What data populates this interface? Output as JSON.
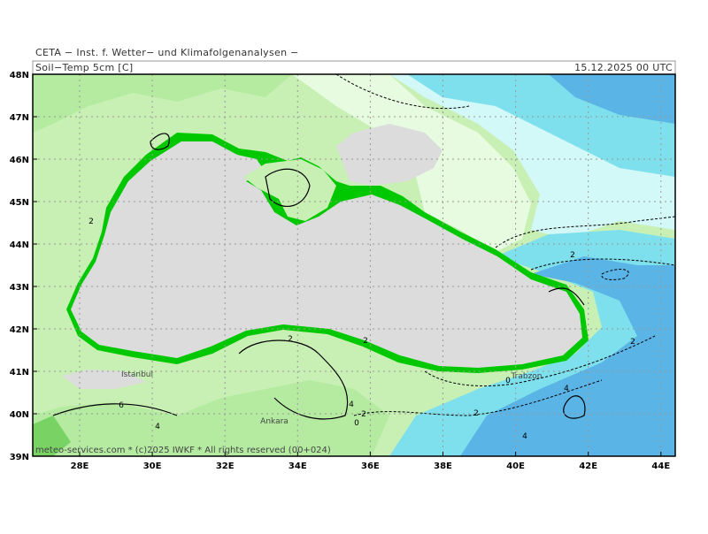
{
  "header": {
    "source": "CETA − Inst. f. Wetter− und Klimafolgenanalysen −",
    "variable": "Soil−Temp 5cm [C]",
    "valid_time": "15.12.2025 00 UTC"
  },
  "map": {
    "lat_labels": [
      "48N",
      "47N",
      "46N",
      "45N",
      "44N",
      "43N",
      "42N",
      "41N",
      "40N",
      "39N"
    ],
    "lon_labels": [
      "28E",
      "30E",
      "32E",
      "34E",
      "36E",
      "38E",
      "40E",
      "42E",
      "44E"
    ],
    "places": [
      "Istanbul",
      "Trabzon",
      "Ankara"
    ],
    "contour_labels": [
      "2",
      "2",
      "2",
      "6",
      "4",
      "4",
      "2",
      "0",
      "2",
      "0",
      "2",
      "4",
      "4",
      "2"
    ],
    "copyright": "meteo-services.com * (c)2025 IWKF * All rights reserved (00+024)"
  }
}
